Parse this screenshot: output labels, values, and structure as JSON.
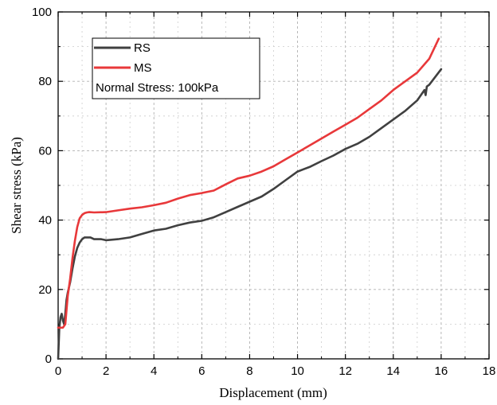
{
  "chart_data": {
    "type": "line",
    "title": "",
    "xlabel": "Displacement (mm)",
    "ylabel": "Shear stress (kPa)",
    "xlim": [
      0,
      18
    ],
    "ylim": [
      0,
      100
    ],
    "xticks": [
      "0",
      "2",
      "4",
      "6",
      "8",
      "10",
      "12",
      "14",
      "16",
      "18"
    ],
    "yticks": [
      "0",
      "20",
      "40",
      "60",
      "80",
      "100"
    ],
    "grid": true,
    "legend_position": "top-left",
    "annotation": "Normal Stress: 100kPa",
    "series": [
      {
        "name": "RS",
        "color": "#404040",
        "x": [
          0,
          0.05,
          0.1,
          0.15,
          0.2,
          0.25,
          0.3,
          0.35,
          0.4,
          0.5,
          0.6,
          0.7,
          0.8,
          0.9,
          1.0,
          1.1,
          1.2,
          1.35,
          1.5,
          1.8,
          2.0,
          2.5,
          3.0,
          3.5,
          4.0,
          4.5,
          5.0,
          5.5,
          6.0,
          6.5,
          7.0,
          7.5,
          8.0,
          8.5,
          9.0,
          9.5,
          10.0,
          10.5,
          11.0,
          11.5,
          12.0,
          12.5,
          13.0,
          13.5,
          14.0,
          14.5,
          15.0,
          15.3,
          15.35,
          15.4,
          15.5,
          16.0
        ],
        "values": [
          0,
          9,
          12,
          13,
          11,
          10,
          13,
          17,
          19,
          22,
          26,
          29.5,
          32,
          33.5,
          34.5,
          35,
          35,
          35,
          34.5,
          34.5,
          34.2,
          34.5,
          35,
          36,
          37,
          37.5,
          38.5,
          39.3,
          39.8,
          40.8,
          42.3,
          43.8,
          45.3,
          46.8,
          49,
          51.5,
          54,
          55.3,
          57,
          58.6,
          60.5,
          62,
          64,
          66.5,
          69,
          71.5,
          74.5,
          77.5,
          76,
          78.5,
          79,
          83.5
        ]
      },
      {
        "name": "MS",
        "color": "#e8383a",
        "x": [
          0,
          0.1,
          0.2,
          0.3,
          0.35,
          0.4,
          0.5,
          0.6,
          0.7,
          0.8,
          0.9,
          1.0,
          1.1,
          1.2,
          1.3,
          1.5,
          2.0,
          2.5,
          3.0,
          3.5,
          4.0,
          4.5,
          5.0,
          5.5,
          6.0,
          6.5,
          7.0,
          7.5,
          8.0,
          8.5,
          9.0,
          9.5,
          10.0,
          10.5,
          11.0,
          11.5,
          12.0,
          12.5,
          13.0,
          13.5,
          14.0,
          14.5,
          15.0,
          15.5,
          15.9
        ],
        "values": [
          9,
          9,
          9,
          10,
          14,
          18,
          23,
          29,
          34,
          38,
          40.5,
          41.5,
          42,
          42.2,
          42.3,
          42.2,
          42.3,
          42.8,
          43.3,
          43.7,
          44.3,
          45,
          46.2,
          47.2,
          47.8,
          48.5,
          50.3,
          52,
          52.8,
          54,
          55.5,
          57.5,
          59.5,
          61.5,
          63.5,
          65.5,
          67.5,
          69.5,
          72,
          74.5,
          77.5,
          80,
          82.5,
          86.5,
          92.3
        ]
      }
    ]
  }
}
